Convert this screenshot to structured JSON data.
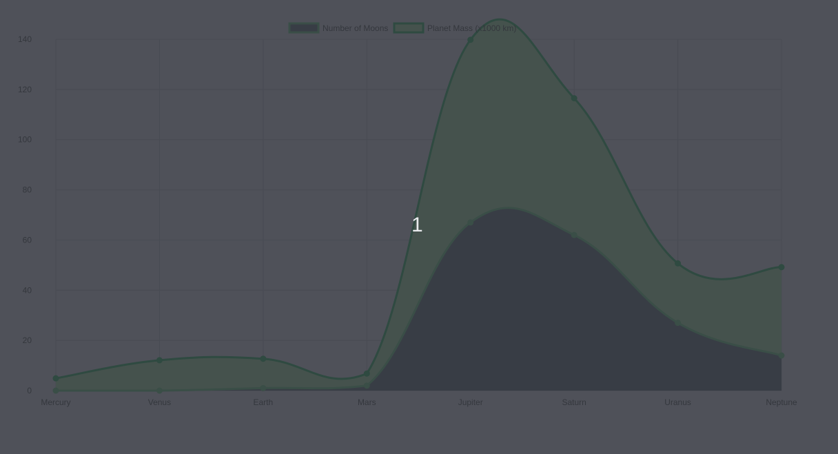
{
  "chart_data": {
    "type": "area",
    "categories": [
      "Mercury",
      "Venus",
      "Earth",
      "Mars",
      "Jupiter",
      "Saturn",
      "Uranus",
      "Neptune"
    ],
    "series": [
      {
        "name": "Number of Moons",
        "values": [
          0,
          0,
          1,
          2,
          67,
          62,
          27,
          14
        ],
        "color": "#383d45",
        "line": "#3a4e47"
      },
      {
        "name": "Planet Mass (x1000 km)",
        "values": [
          4.9,
          12.1,
          12.7,
          6.8,
          139.8,
          116.5,
          50.7,
          49.2
        ],
        "color": "#45524d",
        "line": "#2f4a41"
      }
    ],
    "ylim": [
      0,
      140
    ],
    "yticks": [
      0,
      20,
      40,
      60,
      80,
      100,
      120,
      140
    ],
    "grid": true,
    "legend_position": "top"
  },
  "overlay": {
    "text": "1"
  }
}
